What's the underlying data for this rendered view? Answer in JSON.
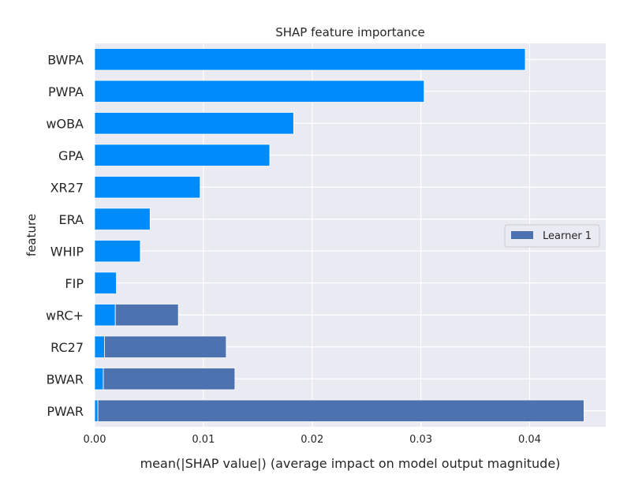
{
  "chart_data": {
    "type": "bar",
    "orientation": "horizontal",
    "title": "SHAP feature importance",
    "xlabel": "mean(|SHAP value|) (average impact on model output magnitude)",
    "ylabel": "feature",
    "xlim": [
      0,
      0.047
    ],
    "xticks": [
      "0.00",
      "0.01",
      "0.02",
      "0.03",
      "0.04"
    ],
    "grid": true,
    "legend_position": "center-right",
    "categories": [
      "BWPA",
      "PWPA",
      "wOBA",
      "GPA",
      "XR27",
      "ERA",
      "WHIP",
      "FIP",
      "wRC+",
      "RC27",
      "BWAR",
      "PWAR"
    ],
    "series": [
      {
        "color": "#008bfb",
        "values": [
          0.0396,
          0.0303,
          0.0183,
          0.0161,
          0.0097,
          0.0051,
          0.0042,
          0.002,
          0.0019,
          0.0009,
          0.0008,
          0.0003
        ]
      },
      {
        "name": "Learner 1",
        "color": "#4c72b0",
        "values": [
          0,
          0,
          0,
          0,
          0,
          0,
          0,
          0,
          0.0058,
          0.0112,
          0.0121,
          0.0447
        ]
      }
    ],
    "colors": {
      "background": "#eaeaf2",
      "grid": "#ffffff",
      "text": "#262626"
    }
  }
}
